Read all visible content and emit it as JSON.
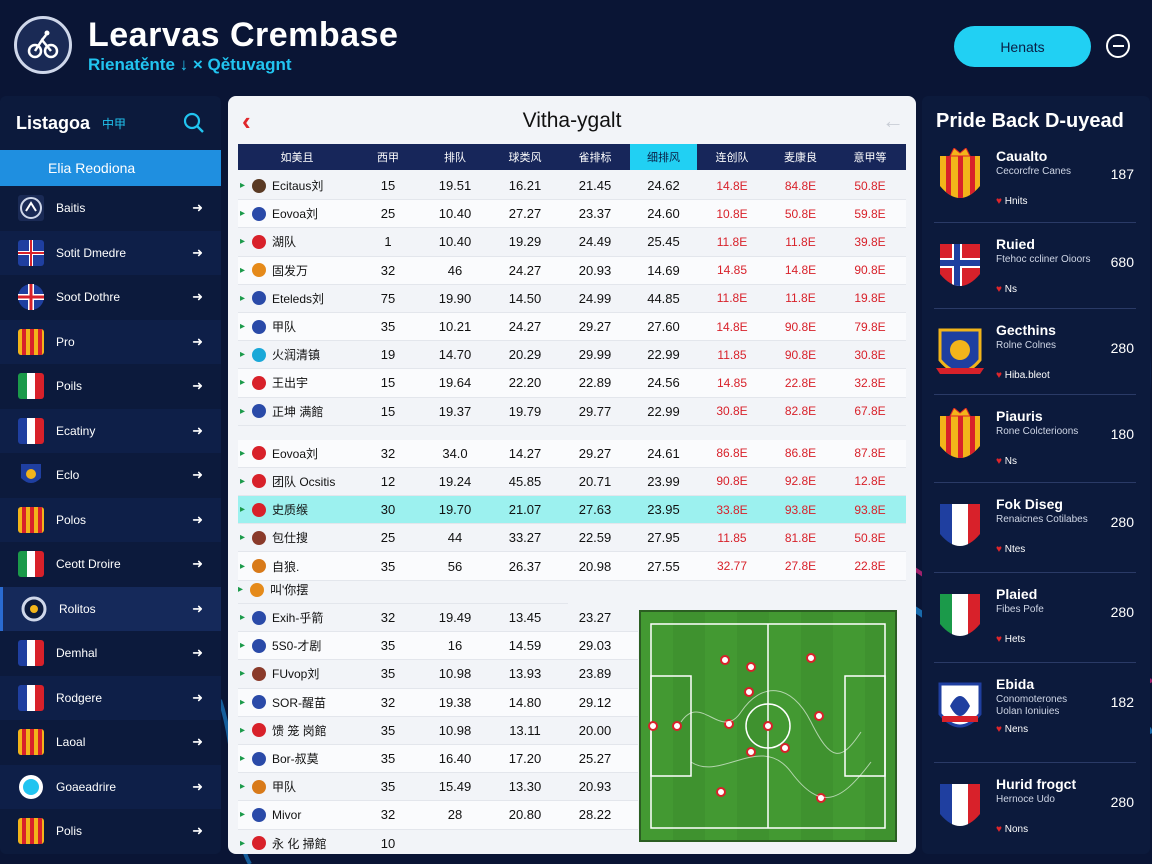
{
  "header": {
    "title": "Learvas Crembase",
    "subtitle": "Rienatěnte ↓ × Qětuvagnt",
    "button_label": "Henats"
  },
  "sidebar": {
    "title": "Listagoa",
    "title_cjk": "中甲",
    "active_label": "Elia Reodiona",
    "items": [
      {
        "label": "Baitis",
        "flag": "crest-a"
      },
      {
        "label": "Sotit Dmedre",
        "flag": "cross"
      },
      {
        "label": "Soot Dothre",
        "flag": "uk"
      },
      {
        "label": "Pro",
        "flag": "stripes-orange"
      },
      {
        "label": "Poils",
        "flag": "italy"
      },
      {
        "label": "Ecatiny",
        "flag": "france-crest"
      },
      {
        "label": "Eclo",
        "flag": "blue-crest"
      },
      {
        "label": "Polos",
        "flag": "stripes-orange"
      },
      {
        "label": "Ceott Droire",
        "flag": "italy"
      },
      {
        "label": "Rolitos",
        "flag": "ring"
      },
      {
        "label": "Demhal",
        "flag": "france-crest"
      },
      {
        "label": "Rodgere",
        "flag": "france-crest"
      },
      {
        "label": "Laoal",
        "flag": "stripes-orange"
      },
      {
        "label": "Goaeadrire",
        "flag": "cyan-dot"
      },
      {
        "label": "Polis",
        "flag": "stripes-orange"
      }
    ]
  },
  "main": {
    "title": "Vitha-ygalt",
    "columns": [
      "如美且",
      "西甲",
      "排队",
      "球类风",
      "雀排标",
      "细排风",
      "连创队",
      "麦康良",
      "意甲等"
    ],
    "rows": [
      {
        "team": "Ecitaus刘",
        "v": [
          "15",
          "19.51",
          "16.21",
          "21.45",
          "24.62",
          "14.8E",
          "84.8E",
          "50.8E"
        ],
        "flag": "#5a3a24"
      },
      {
        "team": "Eovoa刘",
        "v": [
          "25",
          "10.40",
          "27.27",
          "23.37",
          "24.60",
          "10.8E",
          "50.8E",
          "59.8E"
        ],
        "flag": "#2a4aa8"
      },
      {
        "team": "湖队",
        "v": [
          "1",
          "10.40",
          "19.29",
          "24.49",
          "25.45",
          "11.8E",
          "11.8E",
          "39.8E"
        ],
        "flag": "#d8212a"
      },
      {
        "team": "固发万",
        "v": [
          "32",
          "46",
          "24.27",
          "20.93",
          "14.69",
          "14.85",
          "14.8E",
          "90.8E"
        ],
        "flag": "#e58a1a"
      },
      {
        "team": "Eteleds刘",
        "v": [
          "75",
          "19.90",
          "14.50",
          "24.99",
          "44.85",
          "11.8E",
          "11.8E",
          "19.8E"
        ],
        "flag": "#2a4aa8"
      },
      {
        "team": "甲队",
        "v": [
          "35",
          "10.21",
          "24.27",
          "29.27",
          "27.60",
          "14.8E",
          "90.8E",
          "79.8E"
        ],
        "flag": "#2a4aa8"
      },
      {
        "team": "火润清镇",
        "v": [
          "19",
          "14.70",
          "20.29",
          "29.99",
          "22.99",
          "11.85",
          "90.8E",
          "30.8E"
        ],
        "flag": "#1aa8d8"
      },
      {
        "team": "王出宇",
        "v": [
          "15",
          "19.64",
          "22.20",
          "22.89",
          "24.56",
          "14.85",
          "22.8E",
          "32.8E"
        ],
        "flag": "#d8212a"
      },
      {
        "team": "正坤 满館",
        "v": [
          "15",
          "19.37",
          "19.79",
          "29.77",
          "22.99",
          "30.8E",
          "82.8E",
          "67.8E"
        ],
        "flag": "#2a4aa8"
      },
      {
        "team": "Eovoa刘",
        "v": [
          "32",
          "34.0",
          "14.27",
          "29.27",
          "24.61",
          "86.8E",
          "86.8E",
          "87.8E"
        ],
        "flag": "#d8212a"
      },
      {
        "team": "团队 Ocsitis",
        "v": [
          "12",
          "19.24",
          "45.85",
          "20.71",
          "23.99",
          "90.8E",
          "92.8E",
          "12.8E"
        ],
        "flag": "#d8212a"
      },
      {
        "team": "史质缑",
        "v": [
          "30",
          "19.70",
          "21.07",
          "27.63",
          "23.95",
          "33.8E",
          "93.8E",
          "93.8E"
        ],
        "flag": "#d8212a"
      },
      {
        "team": "包仕搜",
        "v": [
          "25",
          "44",
          "33.27",
          "22.59",
          "27.95",
          "11.85",
          "81.8E",
          "50.8E"
        ],
        "flag": "#8a3a2a"
      },
      {
        "team": "自狼.",
        "v": [
          "35",
          "56",
          "26.37",
          "20.98",
          "27.55",
          "32.77",
          "27.8E",
          "22.8E"
        ],
        "flag": "#d87a1a"
      }
    ],
    "section_label": "叫'你摆",
    "lower_rows": [
      {
        "team": "Exih-乎箭",
        "v": [
          "32",
          "19.49",
          "13.45",
          "23.27"
        ],
        "flag": "#2a4aa8"
      },
      {
        "team": "5S0-才剧",
        "v": [
          "35",
          "16",
          "14.59",
          "29.03"
        ],
        "flag": "#2a4aa8"
      },
      {
        "team": "FUvop刘",
        "v": [
          "35",
          "10.98",
          "13.93",
          "23.89"
        ],
        "flag": "#8a3a2a"
      },
      {
        "team": "SOR-醒苗",
        "v": [
          "32",
          "19.38",
          "14.80",
          "29.12"
        ],
        "flag": "#2a4aa8"
      },
      {
        "team": "馈 笼 岗館",
        "v": [
          "35",
          "10.98",
          "13.11",
          "20.00"
        ],
        "flag": "#d8212a"
      },
      {
        "team": "Bor-叔莫",
        "v": [
          "35",
          "16.40",
          "17.20",
          "25.27"
        ],
        "flag": "#2a4aa8"
      },
      {
        "team": "甲队",
        "v": [
          "35",
          "15.49",
          "13.30",
          "20.93"
        ],
        "flag": "#d87a1a"
      },
      {
        "team": "Mivor",
        "v": [
          "32",
          "28",
          "20.80",
          "28.22"
        ],
        "flag": "#2a4aa8"
      },
      {
        "team": "永 化 掃館",
        "v": [
          "10",
          "",
          "",
          ""
        ],
        "flag": "#d8212a"
      }
    ]
  },
  "right_panel": {
    "title": "Pride Back D-uyead",
    "items": [
      {
        "name": "Caualto",
        "desc": "Cecorcfre Canes",
        "tag": "Hnits",
        "score": "187",
        "crest": "spain"
      },
      {
        "name": "Ruied",
        "desc": "Ftehoc ccliner Oioors",
        "tag": "Ns",
        "score": "680",
        "crest": "norway"
      },
      {
        "name": "Gecthins",
        "desc": "Rolne Colnes",
        "tag": "Hiba.bleot",
        "score": "280",
        "crest": "blue-gold"
      },
      {
        "name": "Piauris",
        "desc": "Rone Colcterioons",
        "tag": "Ns",
        "score": "180",
        "crest": "spain"
      },
      {
        "name": "Fok Diseg",
        "desc": "Renaicnes Cotilabes",
        "tag": "Ntes",
        "score": "280",
        "crest": "france"
      },
      {
        "name": "Plaied",
        "desc": "Fibes Pofe",
        "tag": "Hets",
        "score": "280",
        "crest": "italy"
      },
      {
        "name": "Ebida",
        "desc": "Conomoterones Uolan Ioniuies",
        "tag": "Nens",
        "score": "182",
        "crest": "navy"
      },
      {
        "name": "Hurid frogct",
        "desc": "Hernoce Udo",
        "tag": "Nons",
        "score": "280",
        "crest": "france"
      }
    ]
  }
}
